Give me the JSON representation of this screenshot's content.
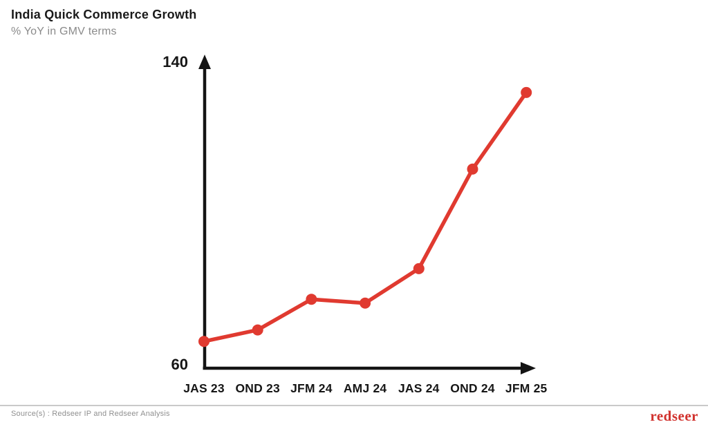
{
  "header": {
    "title": "India Quick Commerce Growth",
    "subtitle": "% YoY in GMV terms"
  },
  "chart_data": {
    "type": "line",
    "title": "India Quick Commerce Growth",
    "subtitle": "% YoY in GMV terms",
    "categories": [
      "JAS 23",
      "OND 23",
      "JFM 24",
      "AMJ 24",
      "JAS 24",
      "OND 24",
      "JFM 25"
    ],
    "values": [
      67,
      70,
      78,
      77,
      86,
      112,
      132
    ],
    "series_name": "India quick commerce growth, % YoY in GMV terms",
    "xlabel": "",
    "ylabel": "% YoY in GMV terms",
    "ylim": [
      60,
      140
    ],
    "yticks": [
      60,
      140
    ],
    "grid": false,
    "legend": false,
    "line_color": "#e03a30",
    "marker_color": "#e03a30",
    "axis_color": "#141414"
  },
  "footer": {
    "source": "Source(s) : Redseer IP and Redseer Analysis",
    "logo_text": "redseer"
  },
  "colors": {
    "accent_red": "#e03a30",
    "logo_red": "#d1322e",
    "title_text": "#1a1a1a",
    "subtitle_text": "#8a8a8a",
    "source_text": "#8f8f8f",
    "divider": "#c9c9c9"
  }
}
